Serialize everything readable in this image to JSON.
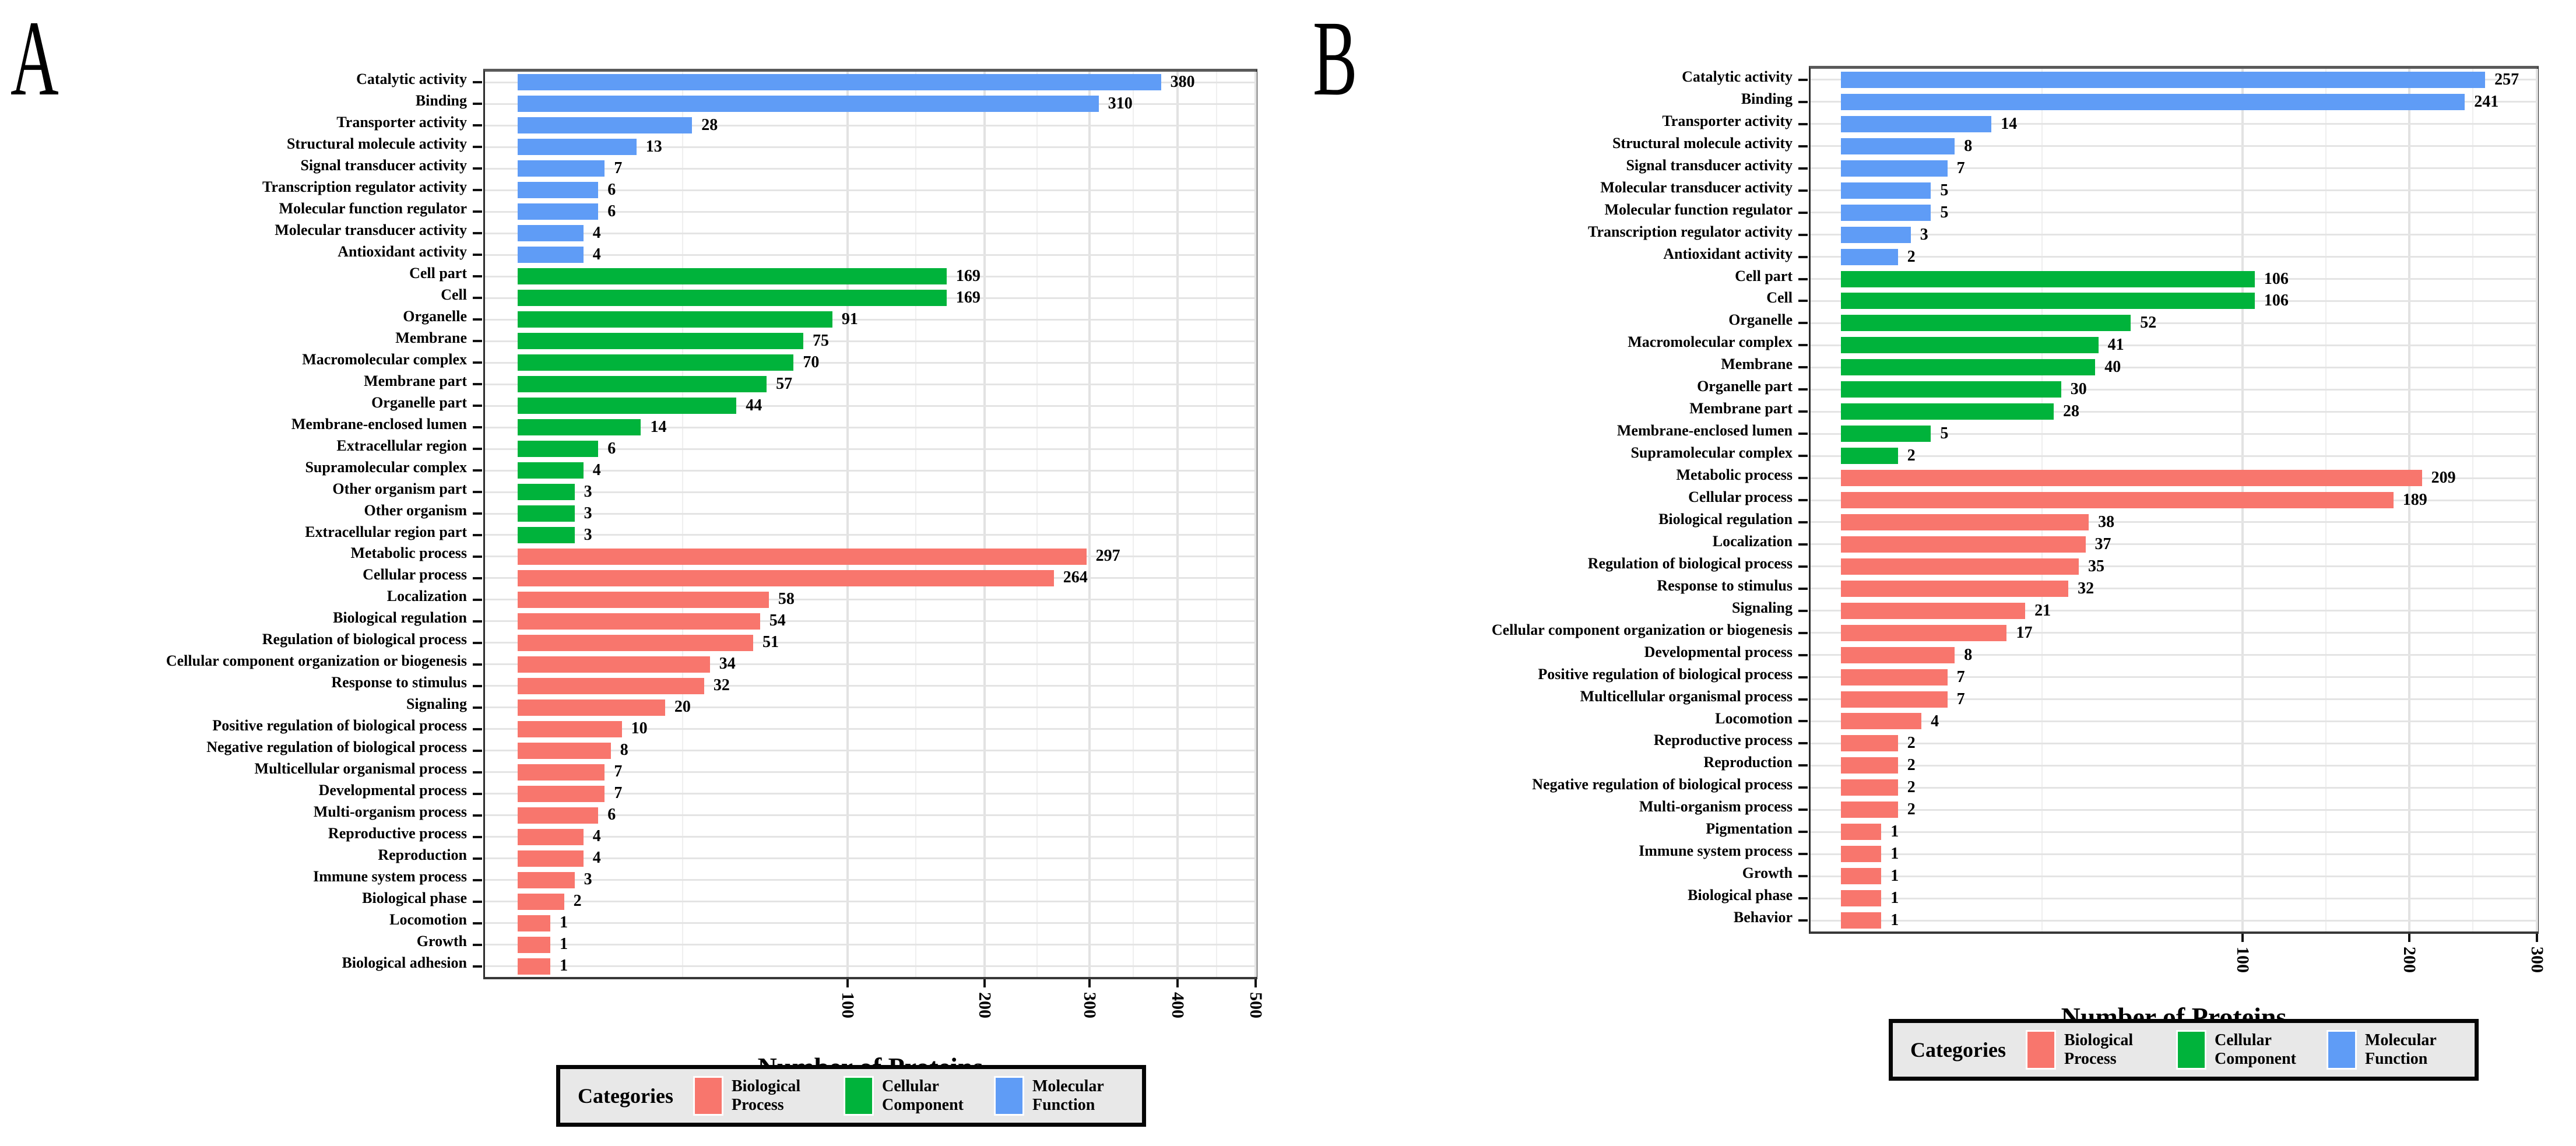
{
  "page": {
    "background": "#ffffff"
  },
  "colors": {
    "Biological Process": "#F8766D",
    "Cellular Component": "#00B33B",
    "Molecular Function": "#5F9CF6"
  },
  "legend": {
    "title": "Categories",
    "items": [
      {
        "label": "Biological Process",
        "color": "#F8766D"
      },
      {
        "label": "Cellular Component",
        "color": "#00B33B"
      },
      {
        "label": "Molecular Function",
        "color": "#5F9CF6"
      }
    ]
  },
  "chart_data": [
    {
      "type": "bar",
      "orientation": "horizontal",
      "panel_label": "A",
      "xlabel": "Number of Proteins",
      "x_scale": "sqrt",
      "x_ticks": [
        100,
        200,
        300,
        400,
        500
      ],
      "x_max": 500,
      "grid": true,
      "legend_position": "bottom",
      "bars": [
        {
          "category": "Catalytic activity",
          "value": 380,
          "group": "Molecular Function"
        },
        {
          "category": "Binding",
          "value": 310,
          "group": "Molecular Function"
        },
        {
          "category": "Transporter activity",
          "value": 28,
          "group": "Molecular Function"
        },
        {
          "category": "Structural molecule activity",
          "value": 13,
          "group": "Molecular Function"
        },
        {
          "category": "Signal transducer activity",
          "value": 7,
          "group": "Molecular Function"
        },
        {
          "category": "Transcription regulator activity",
          "value": 6,
          "group": "Molecular Function"
        },
        {
          "category": "Molecular function regulator",
          "value": 6,
          "group": "Molecular Function"
        },
        {
          "category": "Molecular transducer activity",
          "value": 4,
          "group": "Molecular Function"
        },
        {
          "category": "Antioxidant activity",
          "value": 4,
          "group": "Molecular Function"
        },
        {
          "category": "Cell part",
          "value": 169,
          "group": "Cellular Component"
        },
        {
          "category": "Cell",
          "value": 169,
          "group": "Cellular Component"
        },
        {
          "category": "Organelle",
          "value": 91,
          "group": "Cellular Component"
        },
        {
          "category": "Membrane",
          "value": 75,
          "group": "Cellular Component"
        },
        {
          "category": "Macromolecular complex",
          "value": 70,
          "group": "Cellular Component"
        },
        {
          "category": "Membrane part",
          "value": 57,
          "group": "Cellular Component"
        },
        {
          "category": "Organelle part",
          "value": 44,
          "group": "Cellular Component"
        },
        {
          "category": "Membrane-enclosed lumen",
          "value": 14,
          "group": "Cellular Component"
        },
        {
          "category": "Extracellular region",
          "value": 6,
          "group": "Cellular Component"
        },
        {
          "category": "Supramolecular complex",
          "value": 4,
          "group": "Cellular Component"
        },
        {
          "category": "Other organism part",
          "value": 3,
          "group": "Cellular Component"
        },
        {
          "category": "Other organism",
          "value": 3,
          "group": "Cellular Component"
        },
        {
          "category": "Extracellular region part",
          "value": 3,
          "group": "Cellular Component"
        },
        {
          "category": "Metabolic process",
          "value": 297,
          "group": "Biological Process"
        },
        {
          "category": "Cellular process",
          "value": 264,
          "group": "Biological Process"
        },
        {
          "category": "Localization",
          "value": 58,
          "group": "Biological Process"
        },
        {
          "category": "Biological regulation",
          "value": 54,
          "group": "Biological Process"
        },
        {
          "category": "Regulation of biological process",
          "value": 51,
          "group": "Biological Process"
        },
        {
          "category": "Cellular component organization or biogenesis",
          "value": 34,
          "group": "Biological Process"
        },
        {
          "category": "Response to stimulus",
          "value": 32,
          "group": "Biological Process"
        },
        {
          "category": "Signaling",
          "value": 20,
          "group": "Biological Process"
        },
        {
          "category": "Positive regulation of biological process",
          "value": 10,
          "group": "Biological Process"
        },
        {
          "category": "Negative regulation of biological process",
          "value": 8,
          "group": "Biological Process"
        },
        {
          "category": "Multicellular organismal process",
          "value": 7,
          "group": "Biological Process"
        },
        {
          "category": "Developmental process",
          "value": 7,
          "group": "Biological Process"
        },
        {
          "category": "Multi-organism process",
          "value": 6,
          "group": "Biological Process"
        },
        {
          "category": "Reproductive process",
          "value": 4,
          "group": "Biological Process"
        },
        {
          "category": "Reproduction",
          "value": 4,
          "group": "Biological Process"
        },
        {
          "category": "Immune system process",
          "value": 3,
          "group": "Biological Process"
        },
        {
          "category": "Biological phase",
          "value": 2,
          "group": "Biological Process"
        },
        {
          "category": "Locomotion",
          "value": 1,
          "group": "Biological Process"
        },
        {
          "category": "Growth",
          "value": 1,
          "group": "Biological Process"
        },
        {
          "category": "Biological adhesion",
          "value": 1,
          "group": "Biological Process"
        }
      ]
    },
    {
      "type": "bar",
      "orientation": "horizontal",
      "panel_label": "B",
      "xlabel": "Number of Proteins",
      "x_scale": "sqrt",
      "x_ticks": [
        100,
        200,
        300
      ],
      "x_max": 300,
      "grid": true,
      "legend_position": "bottom",
      "bars": [
        {
          "category": "Catalytic activity",
          "value": 257,
          "group": "Molecular Function"
        },
        {
          "category": "Binding",
          "value": 241,
          "group": "Molecular Function"
        },
        {
          "category": "Transporter activity",
          "value": 14,
          "group": "Molecular Function"
        },
        {
          "category": "Structural molecule activity",
          "value": 8,
          "group": "Molecular Function"
        },
        {
          "category": "Signal transducer activity",
          "value": 7,
          "group": "Molecular Function"
        },
        {
          "category": "Molecular transducer activity",
          "value": 5,
          "group": "Molecular Function"
        },
        {
          "category": "Molecular function regulator",
          "value": 5,
          "group": "Molecular Function"
        },
        {
          "category": "Transcription regulator activity",
          "value": 3,
          "group": "Molecular Function"
        },
        {
          "category": "Antioxidant activity",
          "value": 2,
          "group": "Molecular Function"
        },
        {
          "category": "Cell part",
          "value": 106,
          "group": "Cellular Component"
        },
        {
          "category": "Cell",
          "value": 106,
          "group": "Cellular Component"
        },
        {
          "category": "Organelle",
          "value": 52,
          "group": "Cellular Component"
        },
        {
          "category": "Macromolecular complex",
          "value": 41,
          "group": "Cellular Component"
        },
        {
          "category": "Membrane",
          "value": 40,
          "group": "Cellular Component"
        },
        {
          "category": "Organelle part",
          "value": 30,
          "group": "Cellular Component"
        },
        {
          "category": "Membrane part",
          "value": 28,
          "group": "Cellular Component"
        },
        {
          "category": "Membrane-enclosed lumen",
          "value": 5,
          "group": "Cellular Component"
        },
        {
          "category": "Supramolecular complex",
          "value": 2,
          "group": "Cellular Component"
        },
        {
          "category": "Metabolic process",
          "value": 209,
          "group": "Biological Process"
        },
        {
          "category": "Cellular process",
          "value": 189,
          "group": "Biological Process"
        },
        {
          "category": "Biological regulation",
          "value": 38,
          "group": "Biological Process"
        },
        {
          "category": "Localization",
          "value": 37,
          "group": "Biological Process"
        },
        {
          "category": "Regulation of biological process",
          "value": 35,
          "group": "Biological Process"
        },
        {
          "category": "Response to stimulus",
          "value": 32,
          "group": "Biological Process"
        },
        {
          "category": "Signaling",
          "value": 21,
          "group": "Biological Process"
        },
        {
          "category": "Cellular component organization or biogenesis",
          "value": 17,
          "group": "Biological Process"
        },
        {
          "category": "Developmental process",
          "value": 8,
          "group": "Biological Process"
        },
        {
          "category": "Positive regulation of biological process",
          "value": 7,
          "group": "Biological Process"
        },
        {
          "category": "Multicellular organismal process",
          "value": 7,
          "group": "Biological Process"
        },
        {
          "category": "Locomotion",
          "value": 4,
          "group": "Biological Process"
        },
        {
          "category": "Reproductive process",
          "value": 2,
          "group": "Biological Process"
        },
        {
          "category": "Reproduction",
          "value": 2,
          "group": "Biological Process"
        },
        {
          "category": "Negative regulation of biological process",
          "value": 2,
          "group": "Biological Process"
        },
        {
          "category": "Multi-organism process",
          "value": 2,
          "group": "Biological Process"
        },
        {
          "category": "Pigmentation",
          "value": 1,
          "group": "Biological Process"
        },
        {
          "category": "Immune system process",
          "value": 1,
          "group": "Biological Process"
        },
        {
          "category": "Growth",
          "value": 1,
          "group": "Biological Process"
        },
        {
          "category": "Biological phase",
          "value": 1,
          "group": "Biological Process"
        },
        {
          "category": "Behavior",
          "value": 1,
          "group": "Biological Process"
        }
      ]
    }
  ]
}
